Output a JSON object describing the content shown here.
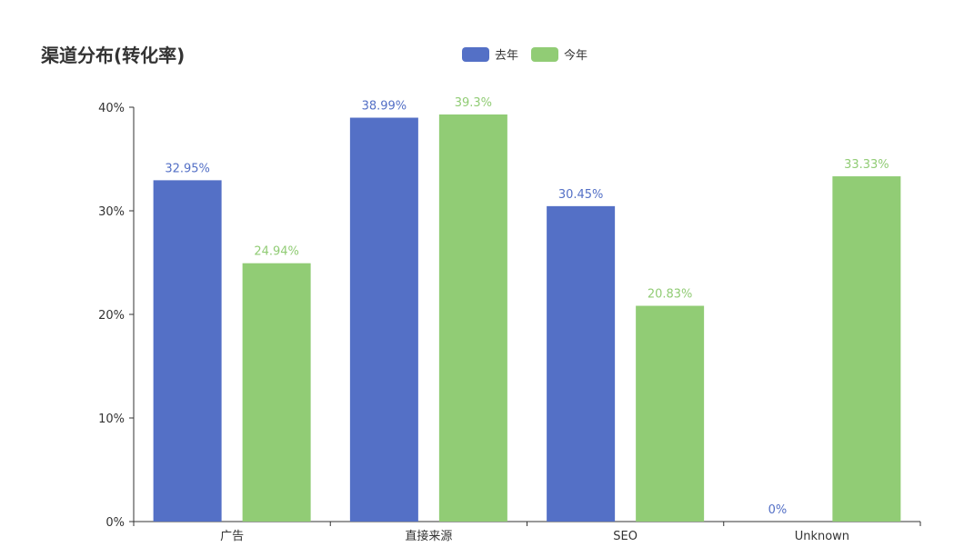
{
  "chart_data": {
    "type": "bar",
    "title": "渠道分布(转化率)",
    "categories": [
      "广告",
      "直接来源",
      "SEO",
      "Unknown"
    ],
    "series": [
      {
        "name": "去年",
        "color": "#5470c6",
        "values": [
          32.95,
          38.99,
          30.45,
          0
        ],
        "labels": [
          "32.95%",
          "38.99%",
          "30.45%",
          "0%"
        ]
      },
      {
        "name": "今年",
        "color": "#91cc75",
        "values": [
          24.94,
          39.3,
          20.83,
          33.33
        ],
        "labels": [
          "24.94%",
          "39.3%",
          "20.83%",
          "33.33%"
        ]
      }
    ],
    "y_ticks": [
      0,
      10,
      20,
      30,
      40
    ],
    "y_tick_labels": [
      "0%",
      "10%",
      "20%",
      "30%",
      "40%"
    ],
    "ylim": [
      0,
      40
    ],
    "legend_position": "top-center",
    "grid": false
  }
}
